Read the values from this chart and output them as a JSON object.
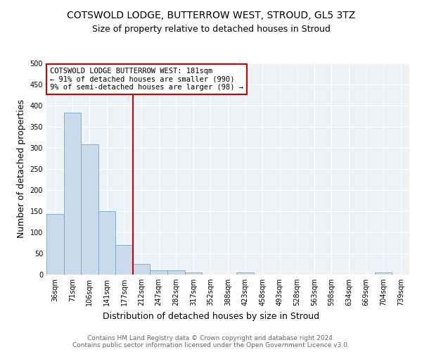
{
  "title": "COTSWOLD LODGE, BUTTERROW WEST, STROUD, GL5 3TZ",
  "subtitle": "Size of property relative to detached houses in Stroud",
  "xlabel": "Distribution of detached houses by size in Stroud",
  "ylabel": "Number of detached properties",
  "bin_labels": [
    "36sqm",
    "71sqm",
    "106sqm",
    "141sqm",
    "177sqm",
    "212sqm",
    "247sqm",
    "282sqm",
    "317sqm",
    "352sqm",
    "388sqm",
    "423sqm",
    "458sqm",
    "493sqm",
    "528sqm",
    "563sqm",
    "598sqm",
    "634sqm",
    "669sqm",
    "704sqm",
    "739sqm"
  ],
  "bar_values": [
    144,
    383,
    308,
    150,
    70,
    25,
    10,
    10,
    5,
    0,
    0,
    5,
    0,
    0,
    0,
    0,
    0,
    0,
    0,
    5,
    0
  ],
  "bar_color": "#c9daea",
  "bar_edge_color": "#6699bb",
  "vline_index": 4.5,
  "vline_color": "#cc0000",
  "annotation_text": "COTSWOLD LODGE BUTTERROW WEST: 181sqm\n← 91% of detached houses are smaller (990)\n9% of semi-detached houses are larger (98) →",
  "annotation_box_color": "#ffffff",
  "annotation_box_edge": "#cc0000",
  "ylim": [
    0,
    500
  ],
  "yticks": [
    0,
    50,
    100,
    150,
    200,
    250,
    300,
    350,
    400,
    450,
    500
  ],
  "footnote": "Contains HM Land Registry data © Crown copyright and database right 2024.\nContains public sector information licensed under the Open Government Licence v3.0.",
  "bg_color": "#edf2f7",
  "grid_color": "#ffffff",
  "title_fontsize": 10,
  "subtitle_fontsize": 9,
  "tick_fontsize": 7,
  "label_fontsize": 9,
  "footnote_fontsize": 6.5,
  "footnote_color": "#666666"
}
